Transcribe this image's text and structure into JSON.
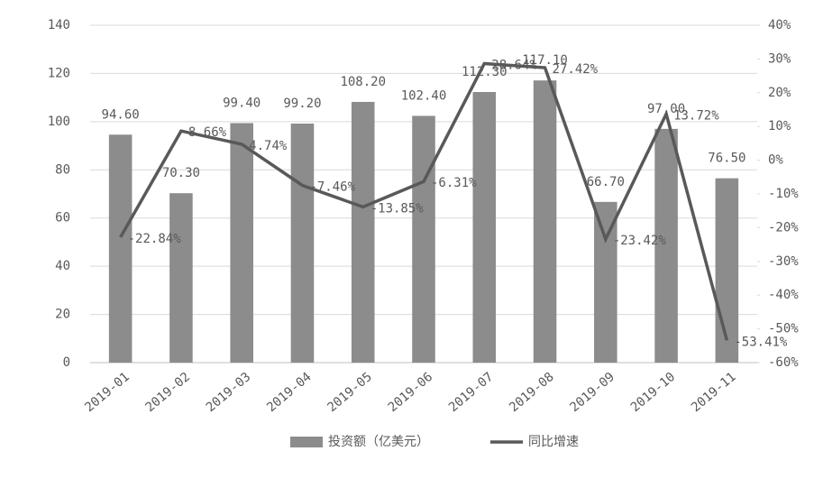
{
  "chart_data": {
    "type": "combo",
    "categories": [
      "2019-01",
      "2019-02",
      "2019-03",
      "2019-04",
      "2019-05",
      "2019-06",
      "2019-07",
      "2019-08",
      "2019-09",
      "2019-10",
      "2019-11"
    ],
    "series": [
      {
        "name": "投资额（亿美元）",
        "type": "bar",
        "color": "#8c8c8c",
        "values": [
          94.6,
          70.3,
          99.4,
          99.2,
          108.2,
          102.4,
          112.3,
          117.1,
          66.7,
          97.0,
          76.5
        ],
        "value_labels": [
          "94.60",
          "70.30",
          "99.40",
          "99.20",
          "108.20",
          "102.40",
          "112.30",
          "117.10",
          "66.70",
          "97.00",
          "76.50"
        ]
      },
      {
        "name": "同比增速",
        "type": "line",
        "axis": "y2",
        "color": "#595959",
        "values": [
          -22.84,
          8.66,
          4.74,
          -7.46,
          -13.85,
          -6.31,
          28.64,
          27.42,
          -23.42,
          13.72,
          -53.41
        ],
        "value_labels": [
          "-22.84%",
          "8.66%",
          "4.74%",
          "-7.46%",
          "-13.85%",
          "-6.31%",
          "28.64%",
          "27.42%",
          "-23.42%",
          "13.72%",
          "-53.41%"
        ]
      }
    ],
    "ylim": [
      0,
      140
    ],
    "yticks": [
      0,
      20,
      40,
      60,
      80,
      100,
      120,
      140
    ],
    "y2lim": [
      -60,
      40
    ],
    "y2ticks": [
      {
        "value": -60,
        "label": "-60%"
      },
      {
        "value": -50,
        "label": "-50%"
      },
      {
        "value": -40,
        "label": "-40%"
      },
      {
        "value": -30,
        "label": "-30%"
      },
      {
        "value": -20,
        "label": "-20%"
      },
      {
        "value": -10,
        "label": "-10%"
      },
      {
        "value": 0,
        "label": "0%"
      },
      {
        "value": 10,
        "label": "10%"
      },
      {
        "value": 20,
        "label": "20%"
      },
      {
        "value": 30,
        "label": "30%"
      },
      {
        "value": 40,
        "label": "40%"
      }
    ],
    "grid": true,
    "legend": "bottom"
  }
}
